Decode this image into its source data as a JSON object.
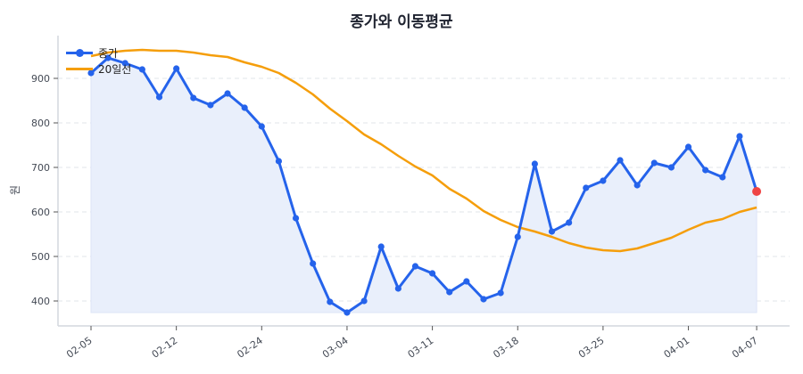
{
  "title": "종가와 이동평균",
  "colors": {
    "close": "#2563eb",
    "ma": "#f59e0b",
    "fill": "#e9effb",
    "last_point": "#ef4444",
    "grid": "#e2e4ea",
    "axis": "#d4d7de"
  },
  "legend": [
    {
      "label": "종가",
      "series": "close"
    },
    {
      "label": "20일선",
      "series": "ma"
    }
  ],
  "chart_data": {
    "type": "line",
    "title": "종가와 이동평균",
    "xlabel": "",
    "ylabel": "원",
    "ylim": [
      352,
      990
    ],
    "yticks": [
      400,
      500,
      600,
      700,
      800,
      900
    ],
    "grid": true,
    "legend_position": "upper left",
    "xtick_labels": [
      {
        "index": 0,
        "label": "02-05"
      },
      {
        "index": 5,
        "label": "02-12"
      },
      {
        "index": 10,
        "label": "02-24"
      },
      {
        "index": 15,
        "label": "03-04"
      },
      {
        "index": 20,
        "label": "03-11"
      },
      {
        "index": 25,
        "label": "03-18"
      },
      {
        "index": 30,
        "label": "03-25"
      },
      {
        "index": 35,
        "label": "04-01"
      },
      {
        "index": 39,
        "label": "04-07"
      }
    ],
    "series": [
      {
        "name": "종가",
        "key": "close",
        "values": [
          912,
          946,
          934,
          920,
          858,
          922,
          856,
          840,
          866,
          834,
          792,
          714,
          586,
          484,
          398,
          374,
          400,
          522,
          428,
          478,
          462,
          420,
          444,
          404,
          418,
          544,
          708,
          556,
          576,
          654,
          670,
          716,
          660,
          710,
          700,
          746,
          694,
          678,
          770,
          646
        ]
      },
      {
        "name": "20일선",
        "key": "ma",
        "values": [
          950,
          958,
          962,
          964,
          962,
          962,
          958,
          952,
          948,
          936,
          926,
          912,
          890,
          864,
          832,
          804,
          774,
          752,
          726,
          702,
          682,
          652,
          630,
          602,
          582,
          566,
          556,
          544,
          530,
          520,
          514,
          512,
          518,
          530,
          542,
          560,
          576,
          584,
          600,
          610
        ]
      }
    ]
  }
}
